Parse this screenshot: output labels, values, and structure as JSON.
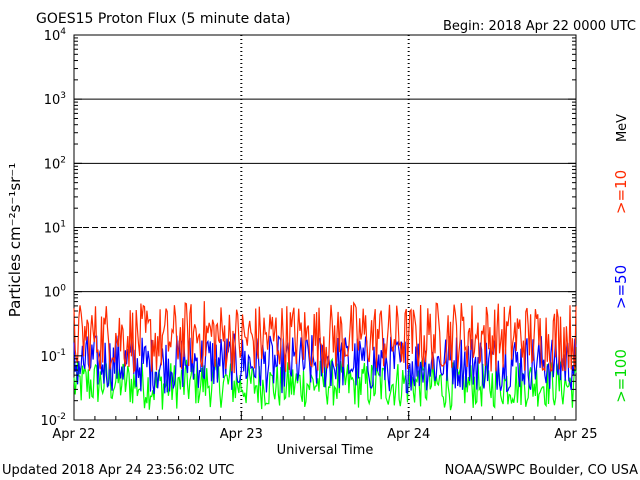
{
  "header": {
    "title": "GOES15 Proton Flux (5 minute data)",
    "begin": "Begin: 2018 Apr 22 0000 UTC"
  },
  "footer": {
    "updated": "Updated 2018 Apr 24 23:56:02 UTC",
    "credit": "NOAA/SWPC Boulder, CO USA"
  },
  "colors": {
    "ge10": "#ff2a00",
    "ge50": "#0000ff",
    "ge100": "#00ff00",
    "axis": "#000000"
  },
  "chart_data": {
    "type": "line",
    "title": "GOES15 Proton Flux (5 minute data)",
    "xlabel": "Universal Time",
    "ylabel": "Particles cm⁻²s⁻¹sr⁻¹",
    "y_scale": "log",
    "ylim": [
      0.01,
      10000
    ],
    "x_ticks": [
      "Apr 22",
      "Apr 23",
      "Apr 24",
      "Apr 25"
    ],
    "y_ticks": [
      {
        "base": "10",
        "exp": "-2"
      },
      {
        "base": "10",
        "exp": "-1"
      },
      {
        "base": "10",
        "exp": "0"
      },
      {
        "base": "10",
        "exp": "1"
      },
      {
        "base": "10",
        "exp": "2"
      },
      {
        "base": "10",
        "exp": "3"
      },
      {
        "base": "10",
        "exp": "4"
      }
    ],
    "threshold_lines": [
      1,
      10,
      100,
      1000
    ],
    "right_labels": {
      "unit": "MeV",
      "series": [
        ">=10",
        ">=50",
        ">=100"
      ]
    },
    "series": [
      {
        "name": ">=10",
        "color": "#ff2a00",
        "x": [
          "Apr 22 00:00",
          "Apr 22 06:00",
          "Apr 22 12:00",
          "Apr 22 18:00",
          "Apr 23 00:00",
          "Apr 23 06:00",
          "Apr 23 12:00",
          "Apr 23 18:00",
          "Apr 24 00:00",
          "Apr 24 06:00",
          "Apr 24 12:00",
          "Apr 24 18:00",
          "Apr 25 00:00"
        ],
        "values": [
          0.19,
          0.21,
          0.17,
          0.22,
          0.18,
          0.2,
          0.19,
          0.21,
          0.18,
          0.22,
          0.2,
          0.19,
          0.2
        ]
      },
      {
        "name": ">=50",
        "color": "#0000ff",
        "x": [
          "Apr 22 00:00",
          "Apr 22 06:00",
          "Apr 22 12:00",
          "Apr 22 18:00",
          "Apr 23 00:00",
          "Apr 23 06:00",
          "Apr 23 12:00",
          "Apr 23 18:00",
          "Apr 24 00:00",
          "Apr 24 06:00",
          "Apr 24 12:00",
          "Apr 24 18:00",
          "Apr 25 00:00"
        ],
        "values": [
          0.075,
          0.08,
          0.07,
          0.085,
          0.078,
          0.072,
          0.08,
          0.076,
          0.074,
          0.082,
          0.078,
          0.08,
          0.075
        ]
      },
      {
        "name": ">=100",
        "color": "#00ff00",
        "x": [
          "Apr 22 00:00",
          "Apr 22 06:00",
          "Apr 22 12:00",
          "Apr 22 18:00",
          "Apr 23 00:00",
          "Apr 23 06:00",
          "Apr 23 12:00",
          "Apr 23 18:00",
          "Apr 24 00:00",
          "Apr 24 06:00",
          "Apr 24 12:00",
          "Apr 24 18:00",
          "Apr 25 00:00"
        ],
        "values": [
          0.035,
          0.04,
          0.033,
          0.038,
          0.036,
          0.034,
          0.039,
          0.035,
          0.037,
          0.034,
          0.036,
          0.038,
          0.035
        ]
      }
    ]
  }
}
